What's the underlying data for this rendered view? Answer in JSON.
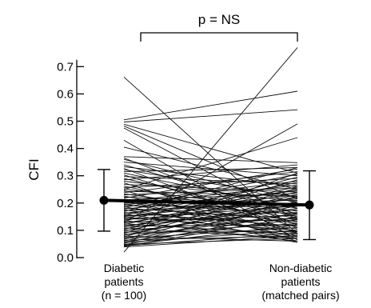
{
  "chart_data": {
    "type": "line",
    "ylabel": "CFI",
    "ylim": [
      0,
      0.77
    ],
    "yticks": [
      0.0,
      0.1,
      0.2,
      0.3,
      0.4,
      0.5,
      0.6,
      0.7
    ],
    "yticklabels": [
      "0.0",
      "0.1",
      "0.2",
      "0.3",
      "0.4",
      "0.5",
      "0.6",
      "0.7"
    ],
    "categories": [
      {
        "lines": [
          "Diabetic",
          "patients",
          "(n = 100)"
        ]
      },
      {
        "lines": [
          "Non-diabetic",
          "patients",
          "(matched pairs)"
        ]
      }
    ],
    "annotation": "p = NS",
    "summary": {
      "diabetic": {
        "mean": 0.21,
        "low": 0.097,
        "high": 0.323
      },
      "non_diabetic": {
        "mean": 0.193,
        "low": 0.066,
        "high": 0.318
      }
    },
    "pairs": [
      [
        0.662,
        0.087
      ],
      [
        0.505,
        0.61
      ],
      [
        0.497,
        0.542
      ],
      [
        0.489,
        0.31
      ],
      [
        0.482,
        0.215
      ],
      [
        0.475,
        0.14
      ],
      [
        0.43,
        0.065
      ],
      [
        0.405,
        0.25
      ],
      [
        0.37,
        0.348
      ],
      [
        0.365,
        0.12
      ],
      [
        0.36,
        0.2
      ],
      [
        0.35,
        0.3
      ],
      [
        0.34,
        0.16
      ],
      [
        0.333,
        0.26
      ],
      [
        0.327,
        0.09
      ],
      [
        0.322,
        0.222
      ],
      [
        0.315,
        0.33
      ],
      [
        0.31,
        0.18
      ],
      [
        0.303,
        0.11
      ],
      [
        0.297,
        0.27
      ],
      [
        0.29,
        0.15
      ],
      [
        0.285,
        0.34
      ],
      [
        0.28,
        0.205
      ],
      [
        0.274,
        0.078
      ],
      [
        0.268,
        0.24
      ],
      [
        0.262,
        0.13
      ],
      [
        0.257,
        0.29
      ],
      [
        0.252,
        0.17
      ],
      [
        0.247,
        0.06
      ],
      [
        0.243,
        0.225
      ],
      [
        0.238,
        0.315
      ],
      [
        0.234,
        0.145
      ],
      [
        0.23,
        0.255
      ],
      [
        0.226,
        0.095
      ],
      [
        0.222,
        0.195
      ],
      [
        0.218,
        0.325
      ],
      [
        0.214,
        0.125
      ],
      [
        0.211,
        0.235
      ],
      [
        0.208,
        0.075
      ],
      [
        0.205,
        0.28
      ],
      [
        0.202,
        0.16
      ],
      [
        0.199,
        0.21
      ],
      [
        0.196,
        0.105
      ],
      [
        0.193,
        0.265
      ],
      [
        0.19,
        0.185
      ],
      [
        0.187,
        0.055
      ],
      [
        0.184,
        0.305
      ],
      [
        0.181,
        0.14
      ],
      [
        0.178,
        0.245
      ],
      [
        0.175,
        0.09
      ],
      [
        0.172,
        0.2
      ],
      [
        0.169,
        0.33
      ],
      [
        0.166,
        0.115
      ],
      [
        0.163,
        0.23
      ],
      [
        0.16,
        0.07
      ],
      [
        0.157,
        0.275
      ],
      [
        0.154,
        0.165
      ],
      [
        0.151,
        0.215
      ],
      [
        0.148,
        0.1
      ],
      [
        0.145,
        0.25
      ],
      [
        0.142,
        0.135
      ],
      [
        0.139,
        0.19
      ],
      [
        0.136,
        0.06
      ],
      [
        0.133,
        0.295
      ],
      [
        0.13,
        0.155
      ],
      [
        0.127,
        0.22
      ],
      [
        0.124,
        0.085
      ],
      [
        0.121,
        0.26
      ],
      [
        0.118,
        0.175
      ],
      [
        0.115,
        0.12
      ],
      [
        0.112,
        0.24
      ],
      [
        0.109,
        0.07
      ],
      [
        0.106,
        0.195
      ],
      [
        0.103,
        0.285
      ],
      [
        0.1,
        0.145
      ],
      [
        0.097,
        0.23
      ],
      [
        0.094,
        0.095
      ],
      [
        0.091,
        0.18
      ],
      [
        0.088,
        0.31
      ],
      [
        0.085,
        0.125
      ],
      [
        0.082,
        0.205
      ],
      [
        0.079,
        0.06
      ],
      [
        0.076,
        0.255
      ],
      [
        0.073,
        0.16
      ],
      [
        0.07,
        0.11
      ],
      [
        0.067,
        0.225
      ],
      [
        0.064,
        0.08
      ],
      [
        0.061,
        0.19
      ],
      [
        0.058,
        0.14
      ],
      [
        0.055,
        0.1
      ],
      [
        0.052,
        0.2
      ],
      [
        0.049,
        0.07
      ],
      [
        0.047,
        0.165
      ],
      [
        0.045,
        0.12
      ],
      [
        0.043,
        0.09
      ],
      [
        0.041,
        0.15
      ],
      [
        0.039,
        0.08
      ],
      [
        0.02,
        0.77
      ],
      [
        0.13,
        0.49
      ],
      [
        0.25,
        0.44
      ]
    ]
  }
}
